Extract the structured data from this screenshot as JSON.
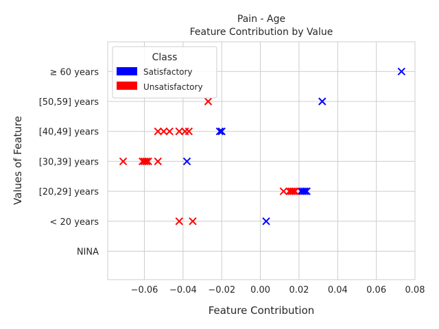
{
  "chart_data": {
    "type": "scatter",
    "title": "Pain - Age",
    "subtitle": "Feature Contribution by Value",
    "xlabel": "Feature Contribution",
    "ylabel": "Values of Feature",
    "xlim": [
      -0.079,
      0.08
    ],
    "x_ticks": [
      "−0.06",
      "−0.04",
      "−0.02",
      "0.00",
      "0.02",
      "0.04",
      "0.06",
      "0.08"
    ],
    "x_tick_values": [
      -0.06,
      -0.04,
      -0.02,
      0.0,
      0.02,
      0.04,
      0.06,
      0.08
    ],
    "categories": [
      "NINA",
      "< 20 years",
      "[20,29] years",
      "[30,39] years",
      "[40,49] years",
      "[50,59] years",
      "≥ 60 years"
    ],
    "grid": true,
    "marker": "x",
    "legend": {
      "title": "Class",
      "placement": "top-left",
      "entries": [
        "Satisfactory",
        "Unsatisfactory"
      ]
    },
    "series": [
      {
        "name": "Satisfactory",
        "color": "#0000ff",
        "points": [
          {
            "x": 0.073,
            "y": "≥ 60 years"
          },
          {
            "x": 0.032,
            "y": "[50,59] years"
          },
          {
            "x": -0.021,
            "y": "[40,49] years"
          },
          {
            "x": -0.02,
            "y": "[40,49] years"
          },
          {
            "x": -0.038,
            "y": "[30,39] years"
          },
          {
            "x": 0.021,
            "y": "[20,29] years"
          },
          {
            "x": 0.022,
            "y": "[20,29] years"
          },
          {
            "x": 0.023,
            "y": "[20,29] years"
          },
          {
            "x": 0.024,
            "y": "[20,29] years"
          },
          {
            "x": 0.003,
            "y": "< 20 years"
          }
        ]
      },
      {
        "name": "Unsatisfactory",
        "color": "#ff0000",
        "points": [
          {
            "x": -0.027,
            "y": "[50,59] years"
          },
          {
            "x": -0.053,
            "y": "[40,49] years"
          },
          {
            "x": -0.05,
            "y": "[40,49] years"
          },
          {
            "x": -0.047,
            "y": "[40,49] years"
          },
          {
            "x": -0.042,
            "y": "[40,49] years"
          },
          {
            "x": -0.039,
            "y": "[40,49] years"
          },
          {
            "x": -0.037,
            "y": "[40,49] years"
          },
          {
            "x": -0.071,
            "y": "[30,39] years"
          },
          {
            "x": -0.061,
            "y": "[30,39] years"
          },
          {
            "x": -0.06,
            "y": "[30,39] years"
          },
          {
            "x": -0.059,
            "y": "[30,39] years"
          },
          {
            "x": -0.058,
            "y": "[30,39] years"
          },
          {
            "x": -0.053,
            "y": "[30,39] years"
          },
          {
            "x": 0.012,
            "y": "[20,29] years"
          },
          {
            "x": 0.015,
            "y": "[20,29] years"
          },
          {
            "x": 0.016,
            "y": "[20,29] years"
          },
          {
            "x": 0.017,
            "y": "[20,29] years"
          },
          {
            "x": 0.018,
            "y": "[20,29] years"
          },
          {
            "x": -0.042,
            "y": "< 20 years"
          },
          {
            "x": -0.035,
            "y": "< 20 years"
          }
        ]
      }
    ]
  }
}
